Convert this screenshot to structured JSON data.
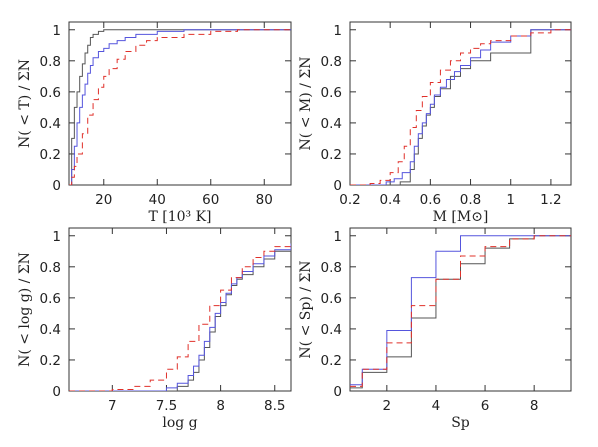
{
  "chart_data": [
    {
      "type": "line",
      "xlabel": "T [10³ K]",
      "ylabel": "N( < T) / ΣN",
      "xlim": [
        7,
        90
      ],
      "ylim": [
        0,
        1.05
      ],
      "xticks": [
        20,
        40,
        60,
        80
      ],
      "yticks": [
        0,
        0.2,
        0.4,
        0.6,
        0.8,
        1
      ],
      "series": [
        {
          "color": "#555555",
          "style": "solid",
          "x": [
            7,
            8,
            9,
            10,
            11,
            12,
            13,
            14,
            15,
            16,
            18,
            20,
            22,
            25,
            90
          ],
          "y": [
            0,
            0.3,
            0.5,
            0.6,
            0.7,
            0.78,
            0.85,
            0.9,
            0.95,
            0.97,
            0.99,
            1,
            1,
            1,
            1
          ]
        },
        {
          "color": "#5555dd",
          "style": "solid",
          "x": [
            7,
            8,
            9,
            10,
            11,
            12,
            13,
            14,
            15,
            16,
            18,
            20,
            22,
            25,
            28,
            32,
            40,
            50,
            90
          ],
          "y": [
            0,
            0.1,
            0.25,
            0.4,
            0.5,
            0.58,
            0.65,
            0.72,
            0.77,
            0.82,
            0.86,
            0.88,
            0.91,
            0.93,
            0.95,
            0.97,
            0.99,
            1,
            1
          ]
        },
        {
          "color": "#e0302a",
          "style": "dashed",
          "x": [
            7,
            8,
            9,
            10,
            12,
            14,
            16,
            18,
            20,
            22,
            25,
            28,
            32,
            36,
            40,
            50,
            60,
            70,
            90
          ],
          "y": [
            0,
            0.05,
            0.12,
            0.2,
            0.33,
            0.45,
            0.55,
            0.63,
            0.7,
            0.75,
            0.81,
            0.86,
            0.9,
            0.93,
            0.95,
            0.97,
            0.99,
            1,
            1
          ]
        }
      ]
    },
    {
      "type": "line",
      "xlabel": "M [M⊙]",
      "ylabel": "N( < M) / ΣN",
      "xlim": [
        0.2,
        1.3
      ],
      "ylim": [
        0,
        1.05
      ],
      "xticks": [
        0.2,
        0.4,
        0.6,
        0.8,
        1,
        1.2
      ],
      "yticks": [
        0,
        0.2,
        0.4,
        0.6,
        0.8,
        1
      ],
      "series": [
        {
          "color": "#555555",
          "style": "solid",
          "x": [
            0.2,
            0.38,
            0.45,
            0.5,
            0.52,
            0.54,
            0.56,
            0.58,
            0.6,
            0.62,
            0.65,
            0.7,
            0.75,
            0.8,
            0.9,
            1.1,
            1.3
          ],
          "y": [
            0,
            0,
            0.02,
            0.1,
            0.2,
            0.3,
            0.38,
            0.45,
            0.5,
            0.57,
            0.62,
            0.7,
            0.75,
            0.8,
            0.85,
            1,
            1
          ]
        },
        {
          "color": "#5555dd",
          "style": "solid",
          "x": [
            0.2,
            0.3,
            0.38,
            0.42,
            0.46,
            0.5,
            0.52,
            0.54,
            0.56,
            0.58,
            0.6,
            0.62,
            0.65,
            0.68,
            0.72,
            0.75,
            0.8,
            0.85,
            0.9,
            1.0,
            1.1,
            1.3
          ],
          "y": [
            0,
            0,
            0.02,
            0.04,
            0.08,
            0.15,
            0.25,
            0.33,
            0.4,
            0.46,
            0.52,
            0.58,
            0.63,
            0.68,
            0.73,
            0.77,
            0.82,
            0.87,
            0.92,
            0.96,
            1,
            1
          ]
        },
        {
          "color": "#e0302a",
          "style": "dashed",
          "x": [
            0.2,
            0.3,
            0.35,
            0.4,
            0.44,
            0.47,
            0.5,
            0.53,
            0.56,
            0.6,
            0.65,
            0.7,
            0.75,
            0.8,
            0.85,
            0.9,
            1.0,
            1.1,
            1.2,
            1.3
          ],
          "y": [
            0,
            0.01,
            0.03,
            0.08,
            0.15,
            0.25,
            0.37,
            0.48,
            0.57,
            0.66,
            0.74,
            0.8,
            0.85,
            0.88,
            0.91,
            0.93,
            0.96,
            0.98,
            1,
            1
          ]
        }
      ]
    },
    {
      "type": "line",
      "xlabel": "log g",
      "ylabel": "N( < log g) / ΣN",
      "xlim": [
        6.6,
        8.65
      ],
      "ylim": [
        0,
        1.05
      ],
      "xticks": [
        7,
        7.5,
        8,
        8.5
      ],
      "yticks": [
        0,
        0.2,
        0.4,
        0.6,
        0.8,
        1
      ],
      "series": [
        {
          "color": "#555555",
          "style": "solid",
          "x": [
            6.6,
            7.5,
            7.6,
            7.7,
            7.75,
            7.8,
            7.85,
            7.9,
            7.95,
            8.0,
            8.05,
            8.1,
            8.15,
            8.2,
            8.3,
            8.4,
            8.5,
            8.65
          ],
          "y": [
            0,
            0,
            0.03,
            0.07,
            0.12,
            0.2,
            0.28,
            0.38,
            0.48,
            0.55,
            0.62,
            0.68,
            0.72,
            0.75,
            0.8,
            0.85,
            0.9,
            0.95
          ]
        },
        {
          "color": "#5555dd",
          "style": "solid",
          "x": [
            6.6,
            7.4,
            7.5,
            7.6,
            7.7,
            7.75,
            7.8,
            7.85,
            7.9,
            7.95,
            8.0,
            8.05,
            8.1,
            8.15,
            8.2,
            8.3,
            8.4,
            8.5,
            8.65
          ],
          "y": [
            0,
            0,
            0.02,
            0.05,
            0.1,
            0.16,
            0.23,
            0.32,
            0.41,
            0.5,
            0.57,
            0.63,
            0.69,
            0.73,
            0.77,
            0.82,
            0.87,
            0.91,
            0.95
          ]
        },
        {
          "color": "#e0302a",
          "style": "dashed",
          "x": [
            6.6,
            7.0,
            7.2,
            7.35,
            7.5,
            7.6,
            7.7,
            7.8,
            7.9,
            8.0,
            8.1,
            8.2,
            8.3,
            8.4,
            8.5,
            8.65
          ],
          "y": [
            0,
            0.01,
            0.03,
            0.07,
            0.14,
            0.22,
            0.32,
            0.43,
            0.55,
            0.65,
            0.73,
            0.8,
            0.86,
            0.9,
            0.93,
            0.95
          ]
        }
      ]
    },
    {
      "type": "line",
      "xlabel": "Sp",
      "ylabel": "N( < Sp) / ΣN",
      "xlim": [
        0.5,
        9.5
      ],
      "ylim": [
        0,
        1.05
      ],
      "xticks": [
        2,
        4,
        6,
        8
      ],
      "yticks": [
        0,
        0.2,
        0.4,
        0.6,
        0.8,
        1
      ],
      "series": [
        {
          "color": "#555555",
          "style": "solid",
          "x": [
            0.5,
            1,
            2,
            3,
            4,
            5,
            6,
            7,
            8,
            9,
            9.5
          ],
          "y": [
            0.02,
            0.12,
            0.22,
            0.47,
            0.72,
            0.82,
            0.92,
            0.98,
            1,
            1,
            1
          ]
        },
        {
          "color": "#5555dd",
          "style": "solid",
          "x": [
            0.5,
            1,
            2,
            3,
            4,
            5,
            6,
            7,
            8,
            9,
            9.5
          ],
          "y": [
            0.04,
            0.14,
            0.39,
            0.73,
            0.9,
            1,
            1,
            1,
            1,
            1,
            1
          ]
        },
        {
          "color": "#e0302a",
          "style": "dashed",
          "x": [
            0.5,
            1,
            2,
            3,
            4,
            5,
            6,
            7,
            8,
            9,
            9.5
          ],
          "y": [
            0.03,
            0.14,
            0.31,
            0.55,
            0.72,
            0.87,
            0.93,
            0.98,
            1,
            1,
            1
          ]
        }
      ]
    }
  ]
}
